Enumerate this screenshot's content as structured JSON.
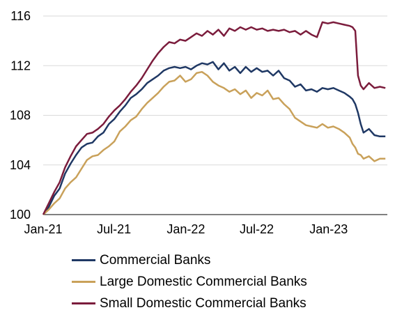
{
  "chart_data": {
    "type": "line",
    "title": "",
    "xlabel": "",
    "ylabel": "",
    "x_range": [
      "2021-01-01",
      "2023-05-31"
    ],
    "ylim": [
      100,
      116
    ],
    "yticks": [
      100,
      104,
      108,
      112,
      116
    ],
    "yticklabels": [
      "100",
      "104",
      "108",
      "112",
      "116"
    ],
    "xticks": [
      "2021-01-01",
      "2021-07-01",
      "2022-01-01",
      "2022-07-01",
      "2023-01-01"
    ],
    "xticklabels": [
      "Jan-21",
      "Jul-21",
      "Jan-22",
      "Jul-22",
      "Jan-23"
    ],
    "grid": "horizontal",
    "legend_position": "bottom",
    "series": [
      {
        "name": "Commercial Banks",
        "color": "#1f3864",
        "points": [
          [
            "2021-01-01",
            100.0
          ],
          [
            "2021-01-15",
            100.6
          ],
          [
            "2021-01-29",
            101.5
          ],
          [
            "2021-02-12",
            102.1
          ],
          [
            "2021-02-26",
            103.3
          ],
          [
            "2021-03-12",
            104.1
          ],
          [
            "2021-03-26",
            104.8
          ],
          [
            "2021-04-09",
            105.4
          ],
          [
            "2021-04-23",
            105.7
          ],
          [
            "2021-05-07",
            105.8
          ],
          [
            "2021-05-21",
            106.3
          ],
          [
            "2021-06-04",
            106.6
          ],
          [
            "2021-06-18",
            107.3
          ],
          [
            "2021-07-02",
            107.7
          ],
          [
            "2021-07-16",
            108.3
          ],
          [
            "2021-07-30",
            108.8
          ],
          [
            "2021-08-13",
            109.4
          ],
          [
            "2021-08-27",
            109.7
          ],
          [
            "2021-09-10",
            110.1
          ],
          [
            "2021-09-24",
            110.6
          ],
          [
            "2021-10-08",
            110.9
          ],
          [
            "2021-10-22",
            111.2
          ],
          [
            "2021-11-05",
            111.6
          ],
          [
            "2021-11-19",
            111.8
          ],
          [
            "2021-12-03",
            111.9
          ],
          [
            "2021-12-17",
            111.8
          ],
          [
            "2021-12-31",
            111.9
          ],
          [
            "2022-01-14",
            111.7
          ],
          [
            "2022-01-28",
            112.0
          ],
          [
            "2022-02-11",
            112.2
          ],
          [
            "2022-02-25",
            112.1
          ],
          [
            "2022-03-11",
            112.3
          ],
          [
            "2022-03-25",
            111.7
          ],
          [
            "2022-04-08",
            112.2
          ],
          [
            "2022-04-22",
            111.6
          ],
          [
            "2022-05-06",
            111.9
          ],
          [
            "2022-05-20",
            111.4
          ],
          [
            "2022-06-03",
            111.9
          ],
          [
            "2022-06-17",
            111.5
          ],
          [
            "2022-07-01",
            111.8
          ],
          [
            "2022-07-15",
            111.5
          ],
          [
            "2022-07-29",
            111.6
          ],
          [
            "2022-08-12",
            111.2
          ],
          [
            "2022-08-26",
            111.6
          ],
          [
            "2022-09-09",
            111.0
          ],
          [
            "2022-09-23",
            110.8
          ],
          [
            "2022-10-07",
            110.3
          ],
          [
            "2022-10-21",
            110.5
          ],
          [
            "2022-11-04",
            110.0
          ],
          [
            "2022-11-18",
            110.1
          ],
          [
            "2022-12-02",
            109.9
          ],
          [
            "2022-12-16",
            110.2
          ],
          [
            "2022-12-30",
            110.1
          ],
          [
            "2023-01-13",
            110.2
          ],
          [
            "2023-01-27",
            110.0
          ],
          [
            "2023-02-10",
            109.8
          ],
          [
            "2023-02-24",
            109.5
          ],
          [
            "2023-03-03",
            109.3
          ],
          [
            "2023-03-10",
            108.9
          ],
          [
            "2023-03-17",
            108.2
          ],
          [
            "2023-03-24",
            107.3
          ],
          [
            "2023-03-31",
            106.6
          ],
          [
            "2023-04-14",
            106.9
          ],
          [
            "2023-04-28",
            106.4
          ],
          [
            "2023-05-12",
            106.3
          ],
          [
            "2023-05-26",
            106.3
          ]
        ]
      },
      {
        "name": "Large Domestic Commercial Banks",
        "color": "#c9a15a",
        "points": [
          [
            "2021-01-01",
            100.0
          ],
          [
            "2021-01-15",
            100.4
          ],
          [
            "2021-01-29",
            100.9
          ],
          [
            "2021-02-12",
            101.3
          ],
          [
            "2021-02-26",
            102.1
          ],
          [
            "2021-03-12",
            102.6
          ],
          [
            "2021-03-26",
            103.0
          ],
          [
            "2021-04-09",
            103.7
          ],
          [
            "2021-04-23",
            104.4
          ],
          [
            "2021-05-07",
            104.7
          ],
          [
            "2021-05-21",
            104.8
          ],
          [
            "2021-06-04",
            105.2
          ],
          [
            "2021-06-18",
            105.5
          ],
          [
            "2021-07-02",
            105.9
          ],
          [
            "2021-07-16",
            106.7
          ],
          [
            "2021-07-30",
            107.1
          ],
          [
            "2021-08-13",
            107.6
          ],
          [
            "2021-08-27",
            107.9
          ],
          [
            "2021-09-10",
            108.5
          ],
          [
            "2021-09-24",
            109.0
          ],
          [
            "2021-10-08",
            109.4
          ],
          [
            "2021-10-22",
            109.8
          ],
          [
            "2021-11-05",
            110.3
          ],
          [
            "2021-11-19",
            110.7
          ],
          [
            "2021-12-03",
            110.8
          ],
          [
            "2021-12-17",
            111.2
          ],
          [
            "2021-12-31",
            110.7
          ],
          [
            "2022-01-14",
            110.9
          ],
          [
            "2022-01-28",
            111.4
          ],
          [
            "2022-02-11",
            111.5
          ],
          [
            "2022-02-25",
            111.2
          ],
          [
            "2022-03-11",
            110.7
          ],
          [
            "2022-03-25",
            110.4
          ],
          [
            "2022-04-08",
            110.2
          ],
          [
            "2022-04-22",
            109.9
          ],
          [
            "2022-05-06",
            110.1
          ],
          [
            "2022-05-20",
            109.7
          ],
          [
            "2022-06-03",
            110.0
          ],
          [
            "2022-06-17",
            109.4
          ],
          [
            "2022-07-01",
            109.8
          ],
          [
            "2022-07-15",
            109.6
          ],
          [
            "2022-07-29",
            110.0
          ],
          [
            "2022-08-12",
            109.3
          ],
          [
            "2022-08-26",
            109.4
          ],
          [
            "2022-09-09",
            108.9
          ],
          [
            "2022-09-23",
            108.5
          ],
          [
            "2022-10-07",
            107.8
          ],
          [
            "2022-10-21",
            107.5
          ],
          [
            "2022-11-04",
            107.2
          ],
          [
            "2022-11-18",
            107.1
          ],
          [
            "2022-12-02",
            107.0
          ],
          [
            "2022-12-16",
            107.3
          ],
          [
            "2022-12-30",
            107.0
          ],
          [
            "2023-01-13",
            107.1
          ],
          [
            "2023-01-27",
            106.9
          ],
          [
            "2023-02-10",
            106.6
          ],
          [
            "2023-02-24",
            106.2
          ],
          [
            "2023-03-03",
            105.7
          ],
          [
            "2023-03-10",
            105.4
          ],
          [
            "2023-03-17",
            104.9
          ],
          [
            "2023-03-24",
            104.8
          ],
          [
            "2023-03-31",
            104.5
          ],
          [
            "2023-04-14",
            104.7
          ],
          [
            "2023-04-28",
            104.3
          ],
          [
            "2023-05-12",
            104.5
          ],
          [
            "2023-05-26",
            104.5
          ]
        ]
      },
      {
        "name": "Small Domestic Commercial Banks",
        "color": "#7b1c3c",
        "points": [
          [
            "2021-01-01",
            100.0
          ],
          [
            "2021-01-15",
            100.9
          ],
          [
            "2021-01-29",
            101.8
          ],
          [
            "2021-02-12",
            102.6
          ],
          [
            "2021-02-26",
            103.8
          ],
          [
            "2021-03-12",
            104.7
          ],
          [
            "2021-03-26",
            105.5
          ],
          [
            "2021-04-09",
            106.0
          ],
          [
            "2021-04-23",
            106.5
          ],
          [
            "2021-05-07",
            106.6
          ],
          [
            "2021-05-21",
            106.9
          ],
          [
            "2021-06-04",
            107.3
          ],
          [
            "2021-06-18",
            107.9
          ],
          [
            "2021-07-02",
            108.4
          ],
          [
            "2021-07-16",
            108.8
          ],
          [
            "2021-07-30",
            109.3
          ],
          [
            "2021-08-13",
            109.9
          ],
          [
            "2021-08-27",
            110.4
          ],
          [
            "2021-09-10",
            111.0
          ],
          [
            "2021-09-24",
            111.7
          ],
          [
            "2021-10-08",
            112.4
          ],
          [
            "2021-10-22",
            113.0
          ],
          [
            "2021-11-05",
            113.5
          ],
          [
            "2021-11-19",
            113.9
          ],
          [
            "2021-12-03",
            113.8
          ],
          [
            "2021-12-17",
            114.1
          ],
          [
            "2021-12-31",
            114.0
          ],
          [
            "2022-01-14",
            114.3
          ],
          [
            "2022-01-28",
            114.6
          ],
          [
            "2022-02-11",
            114.4
          ],
          [
            "2022-02-25",
            114.8
          ],
          [
            "2022-03-11",
            114.5
          ],
          [
            "2022-03-25",
            114.9
          ],
          [
            "2022-04-08",
            114.4
          ],
          [
            "2022-04-22",
            115.0
          ],
          [
            "2022-05-06",
            114.8
          ],
          [
            "2022-05-20",
            115.1
          ],
          [
            "2022-06-03",
            114.9
          ],
          [
            "2022-06-17",
            115.1
          ],
          [
            "2022-07-01",
            114.9
          ],
          [
            "2022-07-15",
            115.0
          ],
          [
            "2022-07-29",
            114.8
          ],
          [
            "2022-08-12",
            114.9
          ],
          [
            "2022-08-26",
            114.8
          ],
          [
            "2022-09-09",
            114.9
          ],
          [
            "2022-09-23",
            114.7
          ],
          [
            "2022-10-07",
            114.8
          ],
          [
            "2022-10-21",
            114.5
          ],
          [
            "2022-11-04",
            114.8
          ],
          [
            "2022-11-18",
            114.5
          ],
          [
            "2022-12-02",
            114.3
          ],
          [
            "2022-12-16",
            115.5
          ],
          [
            "2022-12-30",
            115.4
          ],
          [
            "2023-01-13",
            115.5
          ],
          [
            "2023-01-27",
            115.4
          ],
          [
            "2023-02-10",
            115.3
          ],
          [
            "2023-02-24",
            115.2
          ],
          [
            "2023-03-03",
            115.1
          ],
          [
            "2023-03-10",
            114.8
          ],
          [
            "2023-03-17",
            111.2
          ],
          [
            "2023-03-24",
            110.4
          ],
          [
            "2023-03-31",
            110.1
          ],
          [
            "2023-04-14",
            110.6
          ],
          [
            "2023-04-28",
            110.2
          ],
          [
            "2023-05-12",
            110.3
          ],
          [
            "2023-05-26",
            110.2
          ]
        ]
      }
    ]
  }
}
